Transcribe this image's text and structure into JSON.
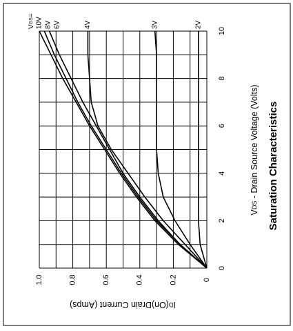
{
  "chart_data": {
    "type": "line",
    "title": "Saturation Characteristics",
    "xlabel_symbol": "V",
    "xlabel_sub": "DS",
    "xlabel": " - Drain Source Voltage (Volts)",
    "ylabel_symbol": "I",
    "ylabel_sub": "D",
    "ylabel": "(On)Drain Current (Amps)",
    "legend_symbol": "V",
    "legend_sub": "GS",
    "legend_suffix": "=",
    "x": [
      0,
      1,
      2,
      3,
      4,
      5,
      6,
      7,
      8,
      9,
      10
    ],
    "series": [
      {
        "name": "10V",
        "color": "#000000",
        "values": [
          0,
          0.17,
          0.31,
          0.42,
          0.52,
          0.61,
          0.7,
          0.78,
          0.86,
          0.93,
          1.0
        ]
      },
      {
        "name": "8V",
        "color": "#000000",
        "values": [
          0,
          0.16,
          0.3,
          0.41,
          0.51,
          0.6,
          0.69,
          0.77,
          0.84,
          0.91,
          0.97
        ]
      },
      {
        "name": "6V",
        "color": "#000000",
        "values": [
          0,
          0.16,
          0.29,
          0.4,
          0.5,
          0.58,
          0.66,
          0.74,
          0.81,
          0.88,
          0.94
        ]
      },
      {
        "name": "4V",
        "color": "#000000",
        "values": [
          0,
          0.13,
          0.26,
          0.37,
          0.47,
          0.57,
          0.65,
          0.69,
          0.7,
          0.71,
          0.71
        ]
      },
      {
        "name": "3V",
        "color": "#000000",
        "values": [
          0,
          0.1,
          0.19,
          0.26,
          0.29,
          0.3,
          0.3,
          0.3,
          0.3,
          0.3,
          0.31
        ]
      },
      {
        "name": "2V",
        "color": "#000000",
        "values": [
          0,
          0.04,
          0.05,
          0.05,
          0.05,
          0.05,
          0.05,
          0.05,
          0.05,
          0.05,
          0.05
        ]
      }
    ],
    "xlim": [
      0,
      10
    ],
    "xticks": [
      0,
      2,
      4,
      6,
      8,
      10
    ],
    "ylim": [
      0,
      1.0
    ],
    "yticks": [
      0,
      {
        "value": 0.2,
        "label": "0.2"
      },
      {
        "value": 0.4,
        "label": "0.4"
      },
      {
        "value": 0.6,
        "label": "0.6"
      },
      {
        "value": 0.8,
        "label": "0.8"
      },
      {
        "value": 1.0,
        "label": "1.0"
      }
    ],
    "grid": true
  }
}
